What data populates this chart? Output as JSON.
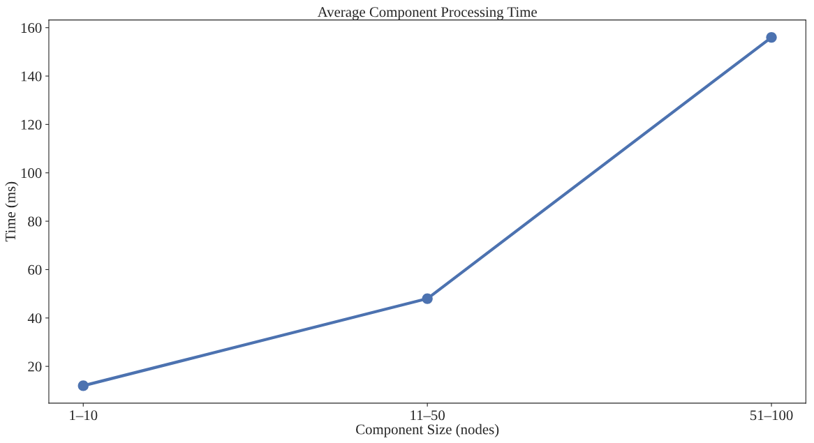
{
  "chart_data": {
    "type": "line",
    "title": "Average Component Processing Time",
    "xlabel": "Component Size (nodes)",
    "ylabel": "Time (ms)",
    "categories": [
      "1–10",
      "11–50",
      "51–100"
    ],
    "series": [
      {
        "color": "#4c72b0",
        "values": [
          12,
          48,
          156
        ]
      }
    ],
    "ylim": [
      4.8,
      163.2
    ],
    "yticks": [
      20,
      40,
      60,
      80,
      100,
      120,
      140,
      160
    ],
    "marker": "circle",
    "line_style": "solid",
    "grid": false
  }
}
